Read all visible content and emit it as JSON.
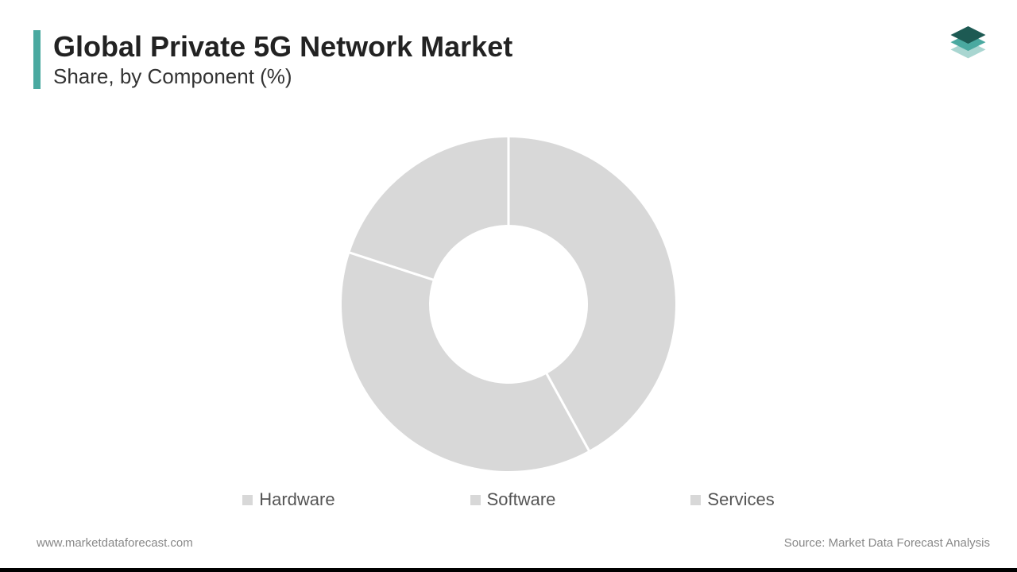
{
  "header": {
    "title": "Global Private 5G Network Market",
    "subtitle": "Share, by Component (%)",
    "accent_color": "#4aa9a0"
  },
  "logo": {
    "top_color": "#1d5a53",
    "mid_color": "#4aa9a0",
    "bot_color": "#a9d6d1"
  },
  "chart": {
    "type": "donut",
    "outer_radius": 210,
    "inner_radius": 100,
    "background_color": "#ffffff",
    "gap_color": "#ffffff",
    "gap_width": 3,
    "slices": [
      {
        "label": "Hardware",
        "value": 42,
        "color": "#d8d8d8"
      },
      {
        "label": "Software",
        "value": 38,
        "color": "#d8d8d8"
      },
      {
        "label": "Services",
        "value": 20,
        "color": "#d8d8d8"
      }
    ]
  },
  "legend": {
    "swatch_color": "#d8d8d8",
    "text_color": "#555555",
    "items": [
      "Hardware",
      "Software",
      "Services"
    ]
  },
  "footer": {
    "left": "www.marketdataforecast.com",
    "right": "Source: Market Data Forecast Analysis",
    "text_color": "#888888"
  }
}
